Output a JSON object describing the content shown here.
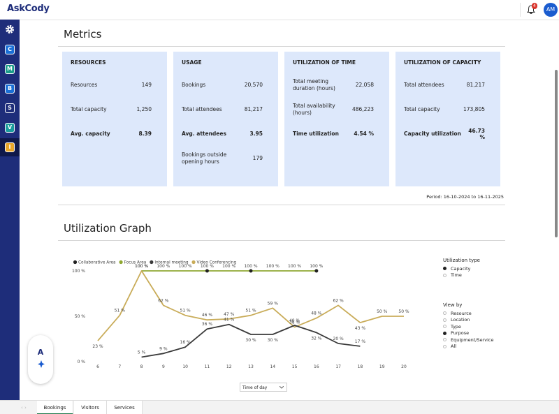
{
  "header": {
    "logo": "AskCody",
    "notifications": "4",
    "avatar": "AM"
  },
  "sidebar": [
    "C",
    "M",
    "B",
    "S",
    "V",
    "I"
  ],
  "metrics": {
    "title": "Metrics",
    "cards": [
      {
        "title": "RESOURCES",
        "rows": [
          {
            "label": "Resources",
            "value": "149"
          },
          {
            "label": "Total capacity",
            "value": "1,250"
          },
          {
            "label": "Avg. capacity",
            "value": "8.39",
            "bold": true
          }
        ]
      },
      {
        "title": "USAGE",
        "rows": [
          {
            "label": "Bookings",
            "value": "20,570"
          },
          {
            "label": "Total attendees",
            "value": "81,217"
          },
          {
            "label": "Avg. attendees",
            "value": "3.95",
            "bold": true
          },
          {
            "label": "Bookings outside opening hours",
            "value": "179"
          }
        ]
      },
      {
        "title": "UTILIZATION OF TIME",
        "rows": [
          {
            "label": "Total meeting duration (hours)",
            "value": "22,058"
          },
          {
            "label": "Total availability (hours)",
            "value": "486,223"
          },
          {
            "label": "Time utilization",
            "value": "4.54 %",
            "bold": true
          }
        ]
      },
      {
        "title": "UTILIZATION OF CAPACITY",
        "rows": [
          {
            "label": "Total attendees",
            "value": "81,217"
          },
          {
            "label": "Total capacity",
            "value": "173,805"
          },
          {
            "label": "Capacity utilization",
            "value": "46.73 %",
            "bold": true
          }
        ]
      }
    ],
    "period": "Period: 16-10-2024 to 16-11-2025"
  },
  "graph": {
    "title": "Utilization Graph",
    "chart_data": {
      "type": "line",
      "x": [
        6,
        7,
        8,
        9,
        10,
        11,
        12,
        13,
        14,
        15,
        16,
        17,
        18,
        19,
        20
      ],
      "xlim": [
        6,
        20
      ],
      "xticks": [
        6,
        7,
        8,
        9,
        10,
        11,
        12,
        13,
        14,
        15,
        16,
        17,
        18,
        19,
        20
      ],
      "ylim": [
        0,
        100
      ],
      "yticks": [
        {
          "value": 0,
          "label": "0 %"
        },
        {
          "value": 50,
          "label": "50 %"
        },
        {
          "value": 100,
          "label": "100 %"
        }
      ],
      "series": [
        {
          "name": "Collaborative Area",
          "color": "#222222",
          "values": [
            null,
            null,
            null,
            null,
            null,
            100,
            null,
            100,
            null,
            null,
            100,
            null,
            null,
            null,
            null
          ]
        },
        {
          "name": "Focus Area",
          "color": "#8fa832",
          "values": [
            null,
            null,
            100,
            100,
            100,
            100,
            100,
            100,
            100,
            100,
            100,
            null,
            null,
            null,
            null
          ],
          "value_labels": [
            null,
            null,
            "100 %",
            "100 %",
            "100 %",
            "100 %",
            "100 %",
            "100 %",
            "100 %",
            "100 %",
            "100 %",
            null,
            null,
            null,
            null
          ]
        },
        {
          "name": "Internal meeting",
          "color": "#3a3a3a",
          "values": [
            null,
            null,
            5,
            9,
            16,
            36,
            41,
            30,
            30,
            40,
            32,
            20,
            17,
            null,
            null
          ],
          "value_labels": [
            null,
            null,
            "5 %",
            "9 %",
            "16 %",
            "36 %",
            "41 %",
            "30 %",
            "30 %",
            "40 %",
            "32 %",
            "20 %",
            "17 %",
            null,
            null
          ]
        },
        {
          "name": "Video Conferencing",
          "color": "#c9ac59",
          "values": [
            23,
            51,
            100,
            62,
            51,
            46,
            47,
            51,
            59,
            38,
            48,
            62,
            43,
            50,
            50
          ],
          "value_labels": [
            "23 %",
            "51 %",
            "100 %",
            "62 %",
            "51 %",
            "46 %",
            "47 %",
            "51 %",
            "59 %",
            "38 %",
            "48 %",
            "62 %",
            "43 %",
            "50 %",
            "50 %"
          ]
        }
      ]
    },
    "controls": [
      {
        "title": "Utilization type",
        "options": [
          "Capacity",
          "Time"
        ],
        "selected": 0
      },
      {
        "title": "View by",
        "options": [
          "Resource",
          "Location",
          "Type",
          "Purpose",
          "Equipment/Service",
          "All"
        ],
        "selected": 3
      }
    ],
    "dropdown": "Time of day"
  },
  "tabs": {
    "items": [
      "Bookings",
      "Visitors",
      "Services"
    ],
    "selected": 0
  }
}
